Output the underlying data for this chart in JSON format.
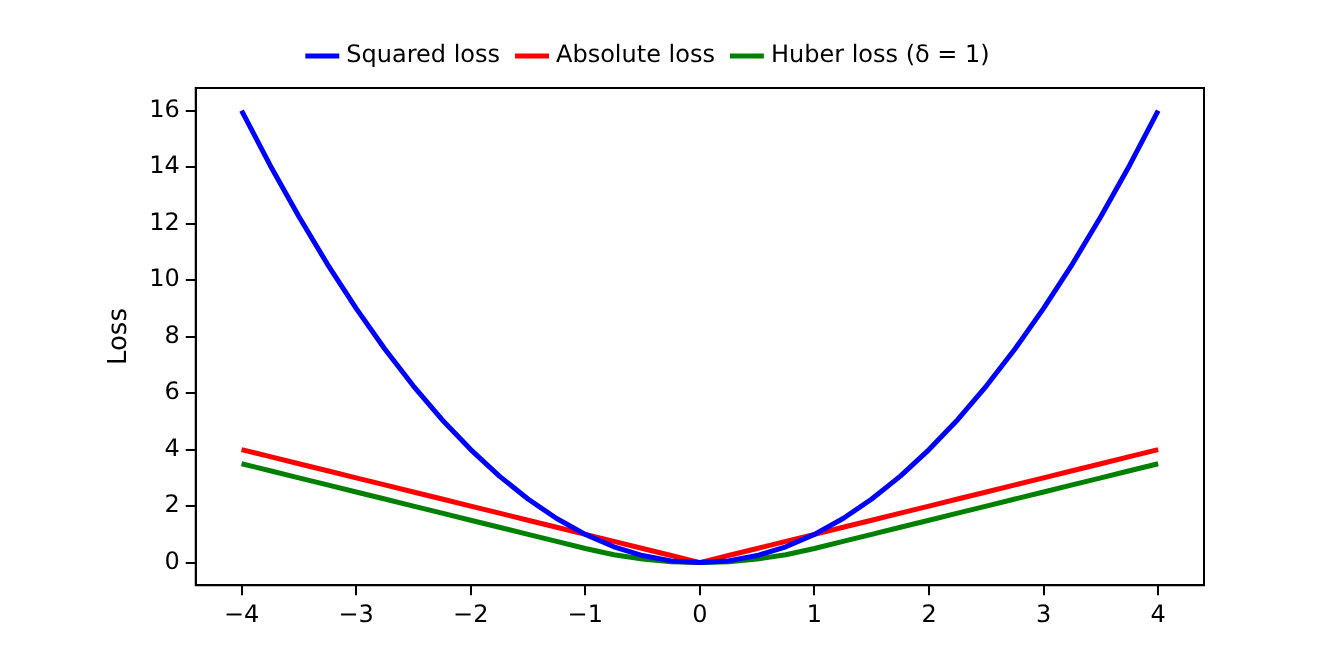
{
  "chart_data": {
    "type": "line",
    "ylabel": "Loss",
    "legend": "top",
    "grid": false,
    "marker": "none",
    "line_style": "solid",
    "x": [
      -4,
      -3.75,
      -3.5,
      -3.25,
      -3,
      -2.75,
      -2.5,
      -2.25,
      -2,
      -1.75,
      -1.5,
      -1.25,
      -1,
      -0.75,
      -0.5,
      -0.25,
      0,
      0.25,
      0.5,
      0.75,
      1,
      1.25,
      1.5,
      1.75,
      2,
      2.25,
      2.5,
      2.75,
      3,
      3.25,
      3.5,
      3.75,
      4
    ],
    "xlim": [
      -4.4,
      4.4
    ],
    "ylim": [
      -0.8,
      16.8
    ],
    "xticks": [
      {
        "value": -4,
        "label": "−4"
      },
      {
        "value": -3,
        "label": "−3"
      },
      {
        "value": -2,
        "label": "−2"
      },
      {
        "value": -1,
        "label": "−1"
      },
      0,
      1,
      2,
      3,
      4
    ],
    "yticks": [
      0,
      2,
      4,
      6,
      8,
      10,
      12,
      14,
      16
    ],
    "series": [
      {
        "name": "Squared loss",
        "color": "#0000ff",
        "values": [
          16,
          14.06,
          12.25,
          10.56,
          9,
          7.56,
          6.25,
          5.06,
          4,
          3.06,
          2.25,
          1.56,
          1,
          0.56,
          0.25,
          0.06,
          0,
          0.06,
          0.25,
          0.56,
          1,
          1.56,
          2.25,
          3.06,
          4,
          5.06,
          6.25,
          7.56,
          9,
          10.56,
          12.25,
          14.06,
          16
        ]
      },
      {
        "name": "Absolute loss",
        "color": "#ff0000",
        "values": [
          4,
          3.75,
          3.5,
          3.25,
          3,
          2.75,
          2.5,
          2.25,
          2,
          1.75,
          1.5,
          1.25,
          1,
          0.75,
          0.5,
          0.25,
          0,
          0.25,
          0.5,
          0.75,
          1,
          1.25,
          1.5,
          1.75,
          2,
          2.25,
          2.5,
          2.75,
          3,
          3.25,
          3.5,
          3.75,
          4
        ]
      },
      {
        "name": "Huber loss (δ = 1)",
        "color": "#008000",
        "values": [
          3.5,
          3.25,
          3,
          2.75,
          2.5,
          2.25,
          2,
          1.75,
          1.5,
          1.25,
          1,
          0.75,
          0.5,
          0.28,
          0.13,
          0.03,
          0,
          0.03,
          0.13,
          0.28,
          0.5,
          0.75,
          1,
          1.25,
          1.5,
          1.75,
          2,
          2.25,
          2.5,
          2.75,
          3,
          3.25,
          3.5
        ]
      }
    ]
  }
}
